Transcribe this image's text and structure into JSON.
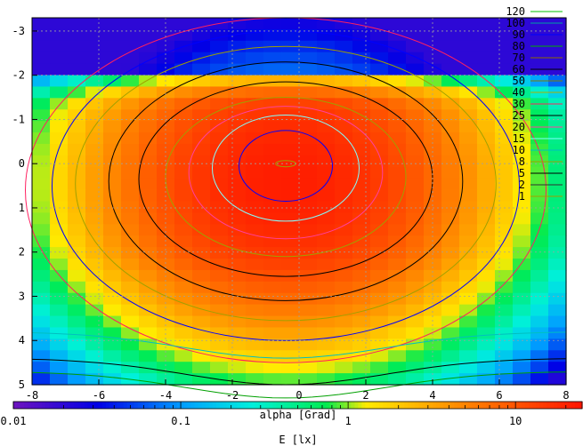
{
  "chart_data": {
    "type": "heatmap",
    "xlabel": "alpha [Grad]",
    "colorbar_label": "E [lx]",
    "xlim": [
      -8,
      8
    ],
    "ylim": [
      -3.3,
      5
    ],
    "x_ticks": [
      "-8",
      "-6",
      "-4",
      "-2",
      "0",
      "2",
      "4",
      "6",
      "8"
    ],
    "y_ticks": [
      "-3",
      "-2",
      "-1",
      "0",
      "1",
      "2",
      "3",
      "4",
      "5"
    ],
    "colorbar_ticks": [
      "0.01",
      "0.1",
      "1",
      "10"
    ],
    "colorbar_range": [
      0.01,
      25
    ],
    "colorbar_scale": "log",
    "grid": true,
    "legend_position": "top-right",
    "contour_levels": [
      {
        "name": "120",
        "color": "#00c000"
      },
      {
        "name": "100",
        "color": "#00a0a0"
      },
      {
        "name": "90",
        "color": "#0000ff"
      },
      {
        "name": "80",
        "color": "#00b000"
      },
      {
        "name": "70",
        "color": "#8a6a00"
      },
      {
        "name": "60",
        "color": "#000000"
      },
      {
        "name": "50",
        "color": "#808000"
      },
      {
        "name": "40",
        "color": "#b0b000"
      },
      {
        "name": "30",
        "color": "#ff2060"
      },
      {
        "name": "25",
        "color": "#000000"
      },
      {
        "name": "20",
        "color": "#ff40a0"
      },
      {
        "name": "15",
        "color": "#80ffff"
      },
      {
        "name": "10",
        "color": "#00c0c0"
      },
      {
        "name": "8",
        "color": "#a0a000"
      },
      {
        "name": "5",
        "color": "#000000"
      },
      {
        "name": "2",
        "color": "#303030"
      },
      {
        "name": "1",
        "color": "#a0a000"
      }
    ]
  }
}
